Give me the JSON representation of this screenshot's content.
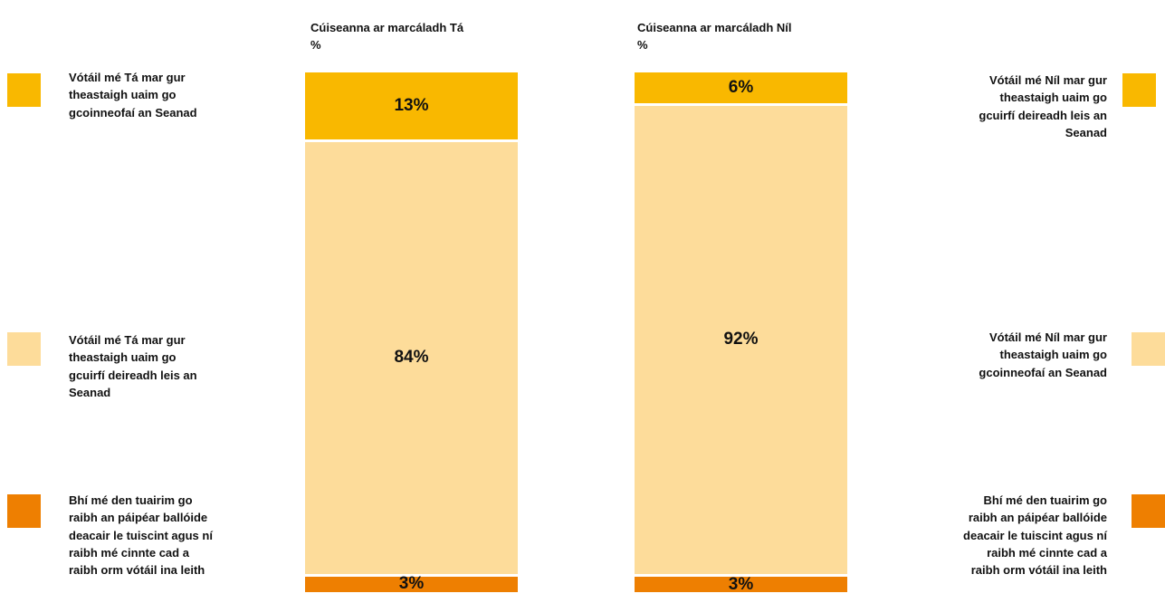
{
  "colors": {
    "dark_yellow": "#f9b800",
    "light_yellow": "#fddc9a",
    "orange": "#ee7f01"
  },
  "chart_data": {
    "type": "bar",
    "stacked": true,
    "percent_scale": true,
    "categories": [
      "Cúiseanna ar marcáladh Tá\n%",
      "Cúiseanna ar marcáladh Níl\n%"
    ],
    "columns": [
      {
        "title": "Cúiseanna ar marcáladh Tá",
        "unit": "%",
        "segments": [
          {
            "value": 13,
            "label": "13%",
            "color": "#f9b800",
            "legend": "Vótáil mé Tá mar gur theastaigh uaim go gcoinneofaí an Seanad"
          },
          {
            "value": 84,
            "label": "84%",
            "color": "#fddc9a",
            "legend": "Vótáil mé Tá mar gur theastaigh uaim go gcuirfí deireadh leis an Seanad"
          },
          {
            "value": 3,
            "label": "3%",
            "color": "#ee7f01",
            "legend": "Bhí mé den tuairim go raibh an páipéar ballóide deacair le tuiscint agus ní raibh mé cinnte cad a raibh orm vótáil ina leith"
          }
        ]
      },
      {
        "title": "Cúiseanna ar marcáladh Níl",
        "unit": "%",
        "segments": [
          {
            "value": 6,
            "label": "6%",
            "color": "#f9b800",
            "legend": "Vótáil mé Níl mar gur theastaigh uaim go gcuirfí deireadh leis an Seanad"
          },
          {
            "value": 92,
            "label": "92%",
            "color": "#fddc9a",
            "legend": "Vótáil mé Níl mar gur theastaigh uaim go gcoinneofaí an Seanad"
          },
          {
            "value": 3,
            "label": "3%",
            "color": "#ee7f01",
            "legend": "Bhí mé den tuairim go raibh an páipéar ballóide deacair le tuiscint agus ní raibh mé cinnte cad a raibh orm vótáil ina leith"
          }
        ]
      }
    ]
  },
  "legend": {
    "left": [
      {
        "text": "Vótáil mé Tá mar gur theastaigh uaim go gcoinneofaí an Seanad",
        "color": "#f9b800"
      },
      {
        "text": "Vótáil mé Tá mar gur theastaigh uaim go gcuirfí deireadh leis an Seanad",
        "color": "#fddc9a"
      },
      {
        "text": "Bhí mé den tuairim go raibh an páipéar ballóide deacair le tuiscint agus ní raibh mé cinnte cad a raibh orm vótáil ina leith",
        "color": "#ee7f01"
      }
    ],
    "right": [
      {
        "text": "Vótáil mé Níl mar gur theastaigh uaim go gcuirfí deireadh leis an Seanad",
        "color": "#f9b800"
      },
      {
        "text": "Vótáil mé Níl mar gur theastaigh uaim go gcoinneofaí an Seanad",
        "color": "#fddc9a"
      },
      {
        "text": "Bhí mé den tuairim go raibh an páipéar ballóide deacair le tuiscint agus ní raibh mé cinnte cad a raibh orm vótáil ina leith",
        "color": "#ee7f01"
      }
    ]
  }
}
